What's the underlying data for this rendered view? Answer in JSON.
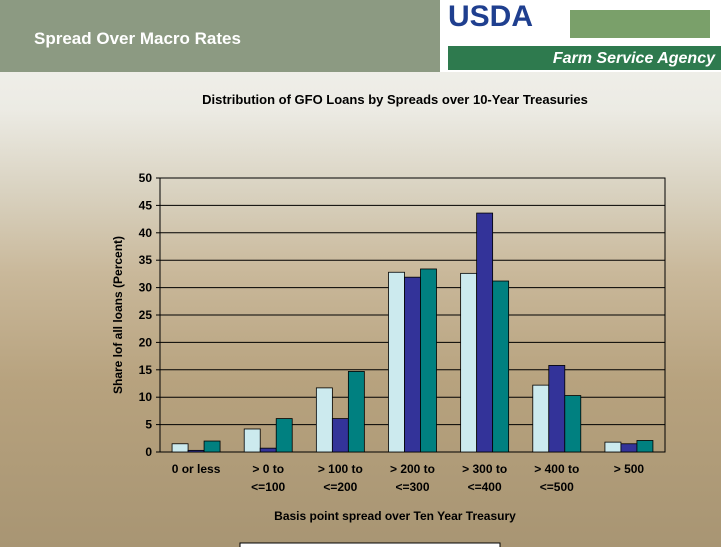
{
  "header": {
    "title": "Spread Over Macro Rates",
    "logo": "USDA",
    "agency": "Farm Service Agency"
  },
  "chart_data": {
    "type": "bar",
    "title": "Distribution of GFO Loans by Spreads over 10-Year Treasuries",
    "x_label": "Basis point spread over Ten Year Treasury",
    "y_label": "Share lof all loans (Percent)",
    "categories": [
      "0 or less",
      "> 0 to\n<=100",
      "> 100 to\n<=200",
      "> 200 to\n<=300",
      "> 300 to\n<=400",
      "> 400 to\n<=500",
      "> 500"
    ],
    "series": [
      {
        "color": "#cceaee",
        "values": [
          1.5,
          4.2,
          11.7,
          32.8,
          32.6,
          12.2,
          1.8
        ]
      },
      {
        "color": "#333399",
        "values": [
          0.3,
          0.7,
          6.1,
          31.9,
          43.6,
          15.8,
          1.5
        ]
      },
      {
        "color": "#008080",
        "values": [
          2.0,
          6.1,
          14.7,
          33.4,
          31.2,
          10.3,
          2.1
        ]
      }
    ],
    "ylim": [
      0,
      50
    ],
    "yticks": [
      0,
      5,
      10,
      15,
      20,
      25,
      30,
      35,
      40,
      45,
      50
    ],
    "grid": true
  }
}
